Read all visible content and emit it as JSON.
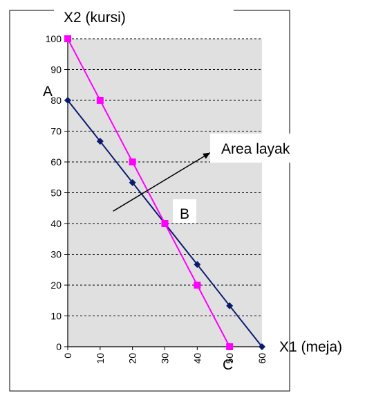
{
  "chart_data": {
    "type": "line",
    "xlabel": "X1 (meja)",
    "ylabel": "X2 (kursi)",
    "xlim": [
      0,
      60
    ],
    "ylim": [
      0,
      100
    ],
    "x_ticks": [
      0,
      10,
      20,
      30,
      40,
      50,
      60
    ],
    "y_ticks": [
      0,
      10,
      20,
      30,
      40,
      50,
      60,
      70,
      80,
      90,
      100
    ],
    "grid": "horizontal-dashed",
    "plot_background": "#e0e0e0",
    "series": [
      {
        "color": "#0a1a6e",
        "marker": "diamond",
        "x": [
          0,
          10,
          20,
          30,
          40,
          50,
          60
        ],
        "y": [
          80,
          66.7,
          53.3,
          40,
          26.7,
          13.3,
          0
        ]
      },
      {
        "color": "#ff00ff",
        "marker": "square",
        "x": [
          0,
          10,
          20,
          30,
          40,
          50
        ],
        "y": [
          100,
          80,
          60,
          40,
          20,
          0
        ]
      }
    ],
    "annotations": [
      {
        "text": "A",
        "x": -6,
        "y": 83
      },
      {
        "text": "B",
        "x": 35,
        "y": 43
      },
      {
        "text": "C",
        "x": 50,
        "y": -6
      },
      {
        "text": "Area layak",
        "x": 49.5,
        "y": 64
      }
    ],
    "arrow": {
      "from": [
        14,
        44
      ],
      "to": [
        44,
        63
      ]
    }
  }
}
